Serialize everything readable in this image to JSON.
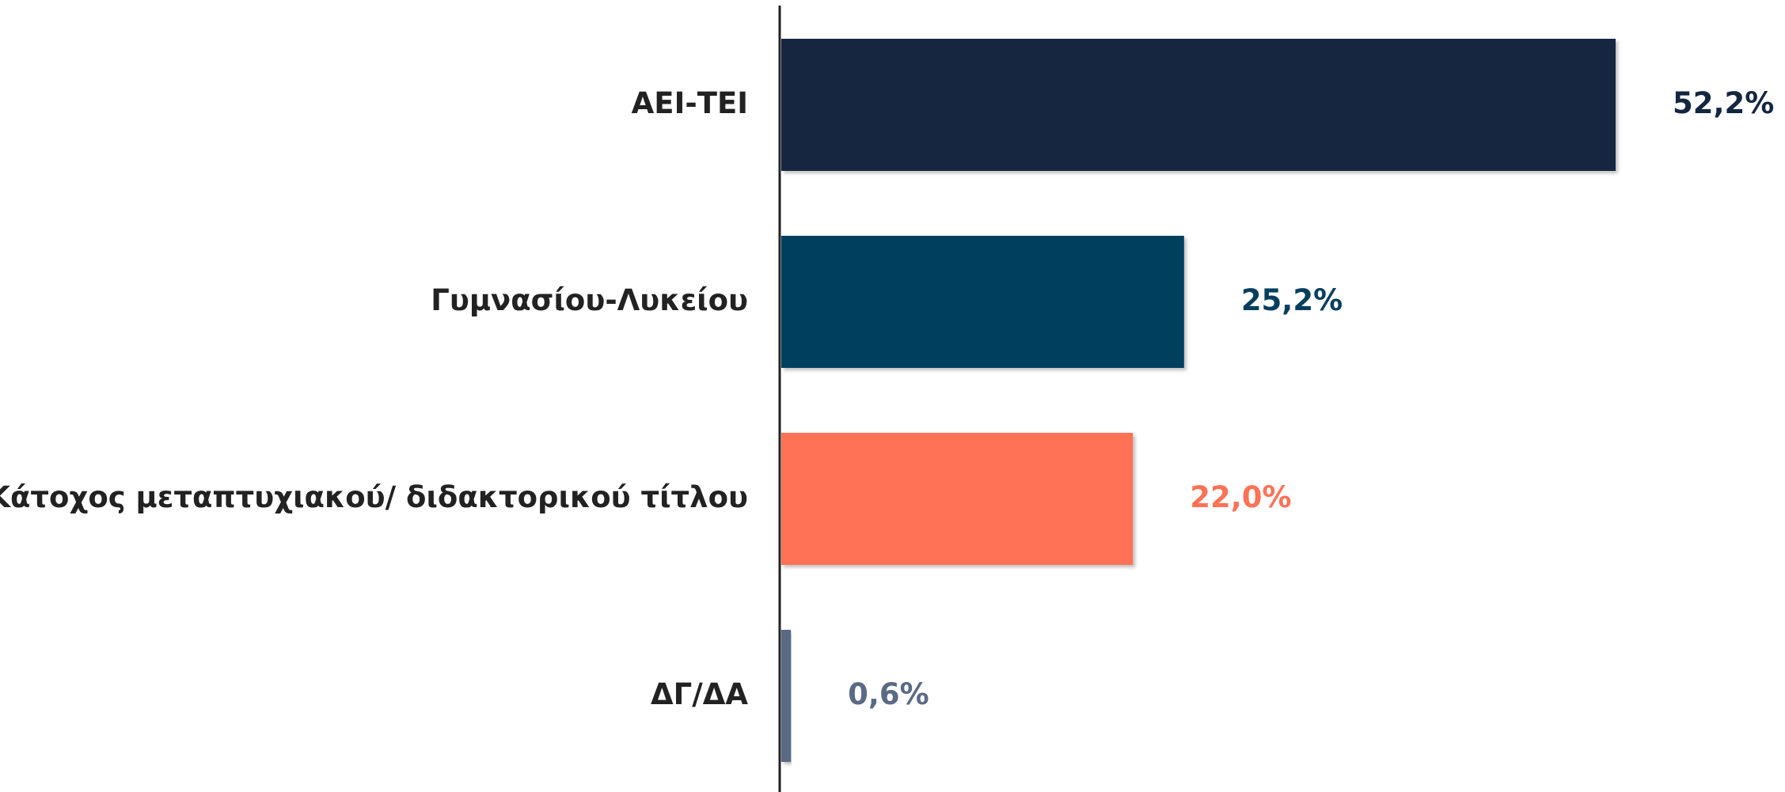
{
  "chart_data": {
    "type": "bar",
    "orientation": "horizontal",
    "categories": [
      "ΑΕΙ-ΤΕΙ",
      "Γυμνασίου-Λυκείου",
      "Κάτοχος μεταπτυχιακού/ διδακτορικού τίτλου",
      "ΔΓ/ΔΑ"
    ],
    "values": [
      52.2,
      25.2,
      22.0,
      0.6
    ],
    "value_labels": [
      "52,2%",
      "25,2%",
      "22,0%",
      "0,6%"
    ],
    "colors": [
      "#142640",
      "#063f5e",
      "#ff7256",
      "#5a6a85"
    ]
  }
}
